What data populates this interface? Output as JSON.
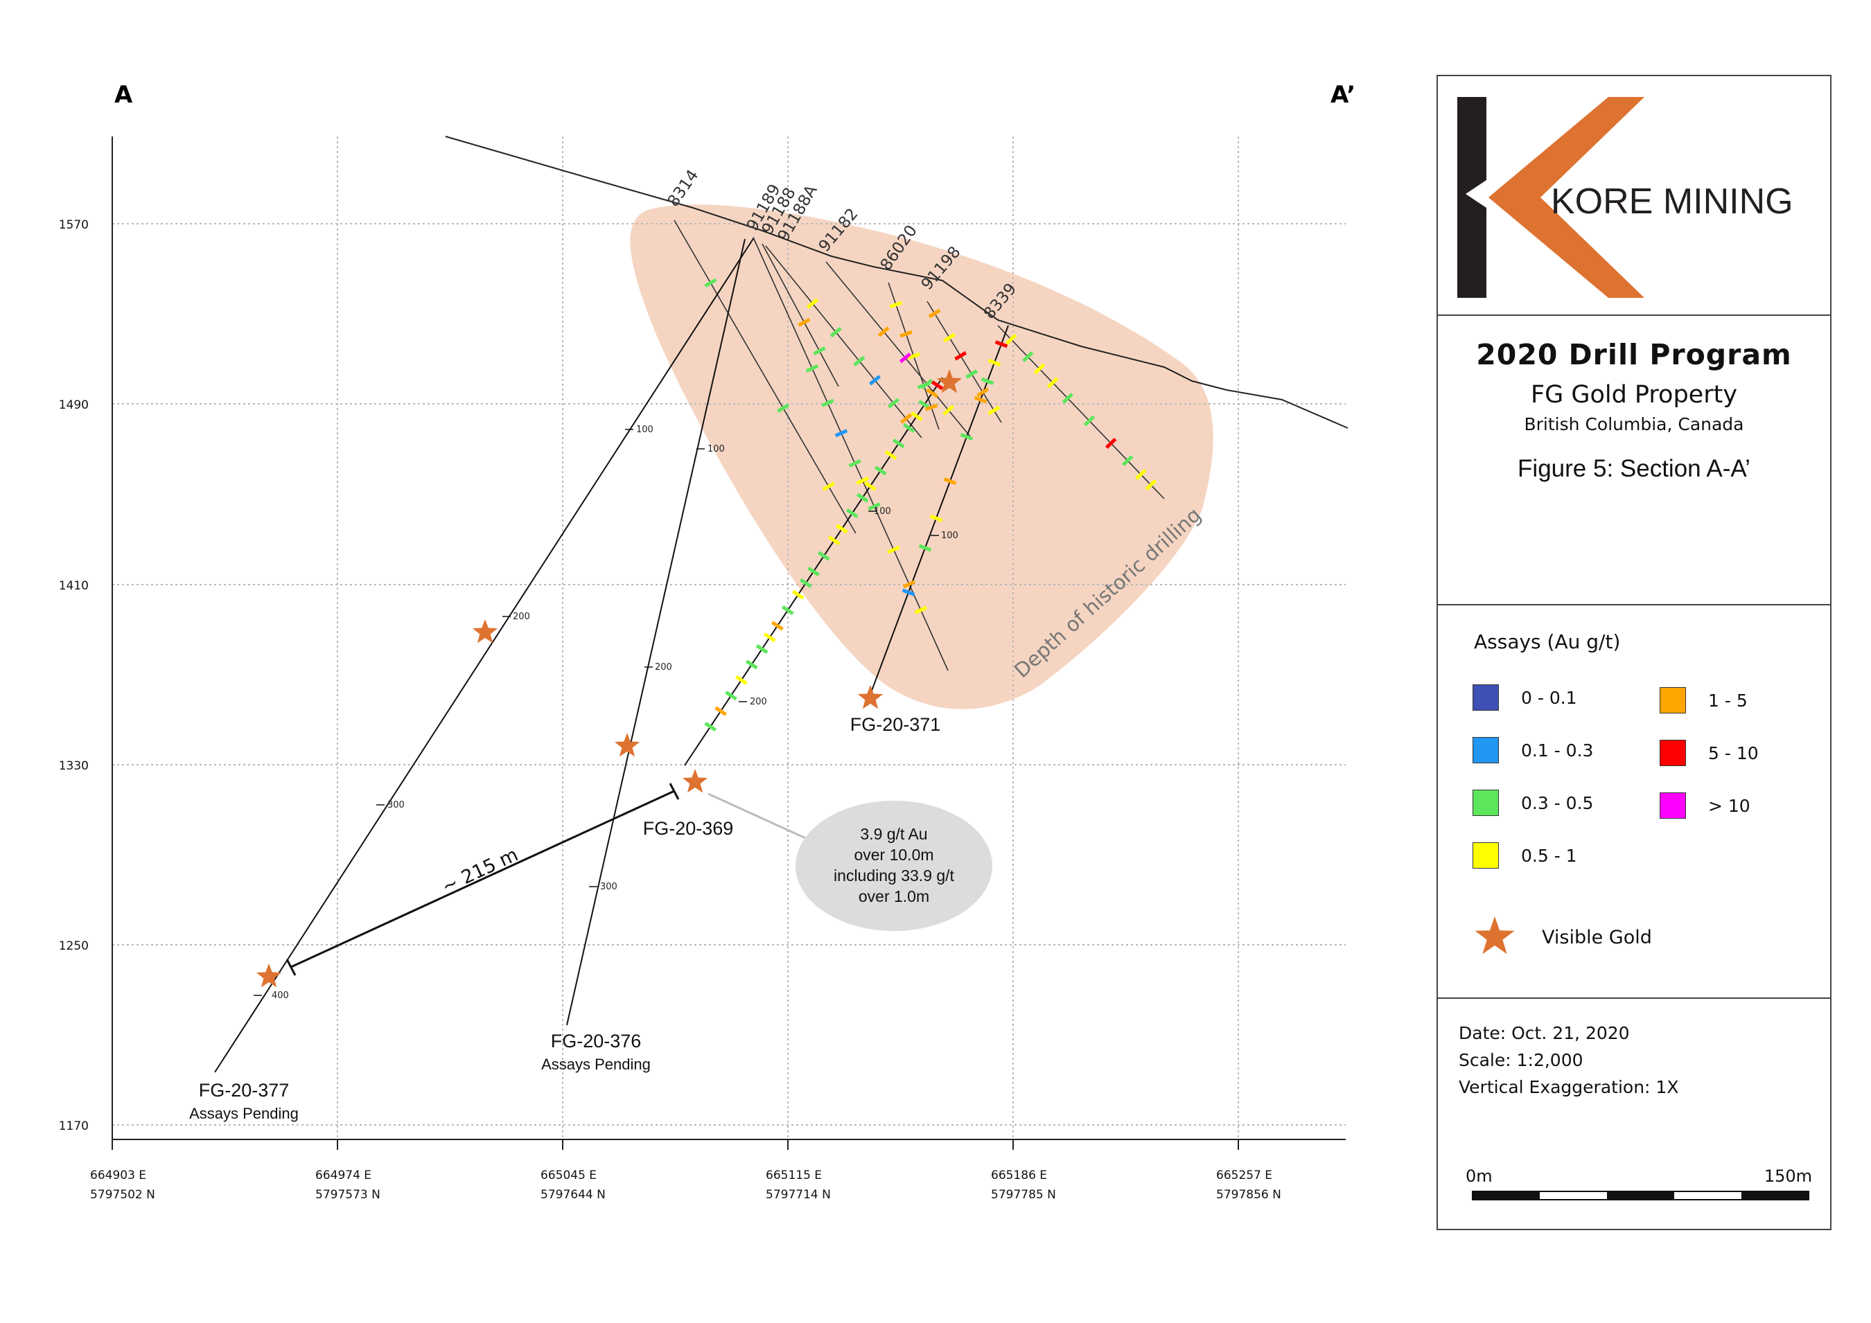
{
  "section": {
    "label_left": "A",
    "label_right": "A’",
    "elevation_ticks": [
      "1570",
      "1490",
      "1410",
      "1330",
      "1250",
      "1170"
    ],
    "easting_ticks": [
      {
        "e": "664903 E",
        "n": "5797502 N"
      },
      {
        "e": "664974 E",
        "n": "5797573 N"
      },
      {
        "e": "665045 E",
        "n": "5797644 N"
      },
      {
        "e": "665115 E",
        "n": "5797714 N"
      },
      {
        "e": "665186 E",
        "n": "5797785 N"
      },
      {
        "e": "665257 E",
        "n": "5797856 N"
      }
    ],
    "historic_holes": [
      "8314",
      "91189",
      "91188",
      "91188A",
      "91182",
      "86020",
      "91198",
      "8339"
    ],
    "depth_marks": {
      "d100": "100",
      "d200": "200",
      "d300": "300",
      "d400": "400"
    },
    "historic_zone_label": "Depth of historic drilling",
    "distance_label": "~ 215 m",
    "holes": {
      "fg377": {
        "name": "FG-20-377",
        "status": "Assays Pending"
      },
      "fg376": {
        "name": "FG-20-376",
        "status": "Assays Pending"
      },
      "fg369": {
        "name": "FG-20-369"
      },
      "fg371": {
        "name": "FG-20-371"
      }
    },
    "callout": [
      "3.9 g/t Au",
      "over 10.0m",
      "including 33.9 g/t",
      "over 1.0m"
    ]
  },
  "panel": {
    "logo_text": "KORE MINING",
    "title": "2020 Drill Program",
    "property": "FG Gold Property",
    "location": "British Columbia, Canada",
    "figure": "Figure 5: Section A-A’",
    "legend_title": "Assays (Au g/t)",
    "legend": [
      {
        "label": "0 - 0.1",
        "color": "#3f51b5"
      },
      {
        "label": "0.1 - 0.3",
        "color": "#2196f3"
      },
      {
        "label": "0.3 - 0.5",
        "color": "#5ce65c"
      },
      {
        "label": "0.5 - 1",
        "color": "#ffff00"
      },
      {
        "label": "1 - 5",
        "color": "#ffa500"
      },
      {
        "label": "5 - 10",
        "color": "#ff0000"
      },
      {
        "label": "> 10",
        "color": "#ff00ff"
      }
    ],
    "visible_gold": "Visible Gold",
    "date": "Date: Oct. 21, 2020",
    "scale": "Scale: 1:2,000",
    "exaggeration": "Vertical Exaggeration: 1X",
    "scalebar_start": "0m",
    "scalebar_end": "150m"
  },
  "colors": {
    "accent": "#de7230",
    "historic_zone": "#f5d5c2",
    "logo_dark": "#231f20",
    "callout_bg": "#dcdcdc",
    "grid": "#b8b8b8"
  }
}
